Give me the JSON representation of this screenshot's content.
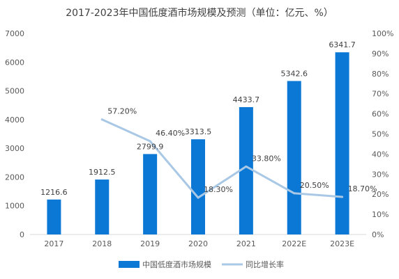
{
  "chart_data": {
    "type": "bar",
    "title": "2017-2023年中国低度酒市场规模及预测（单位：亿元、%）",
    "categories": [
      "2017",
      "2018",
      "2019",
      "2020",
      "2021",
      "2022E",
      "2023E"
    ],
    "series": [
      {
        "name": "中国低度酒市场规模",
        "type": "bar",
        "axis": "left",
        "color": "#0b78d6",
        "values": [
          1216.6,
          1912.5,
          2799.9,
          3313.5,
          4433.7,
          5342.6,
          6341.7
        ],
        "labels": [
          "1216.6",
          "1912.5",
          "2799.9",
          "3313.5",
          "4433.7",
          "5342.6",
          "6341.7"
        ]
      },
      {
        "name": "同比增长率",
        "type": "line",
        "axis": "right",
        "color": "#a9c8e6",
        "x": [
          "2018",
          "2019",
          "2020",
          "2021",
          "2022E",
          "2023E"
        ],
        "values": [
          57.2,
          46.4,
          18.3,
          33.8,
          20.5,
          18.7
        ],
        "labels": [
          "57.20%",
          "46.40%",
          "18.30%",
          "33.80%",
          "20.50%",
          "18.70%"
        ]
      }
    ],
    "y_left": {
      "ylim": [
        0,
        7000
      ],
      "ticks": [
        "0",
        "1000",
        "2000",
        "3000",
        "4000",
        "5000",
        "6000",
        "7000"
      ]
    },
    "y_right": {
      "ylim": [
        0,
        100
      ],
      "ticks": [
        "0%",
        "10%",
        "20%",
        "30%",
        "40%",
        "50%",
        "60%",
        "70%",
        "80%",
        "90%",
        "100%"
      ]
    },
    "grid": false,
    "legend_position": "bottom"
  }
}
